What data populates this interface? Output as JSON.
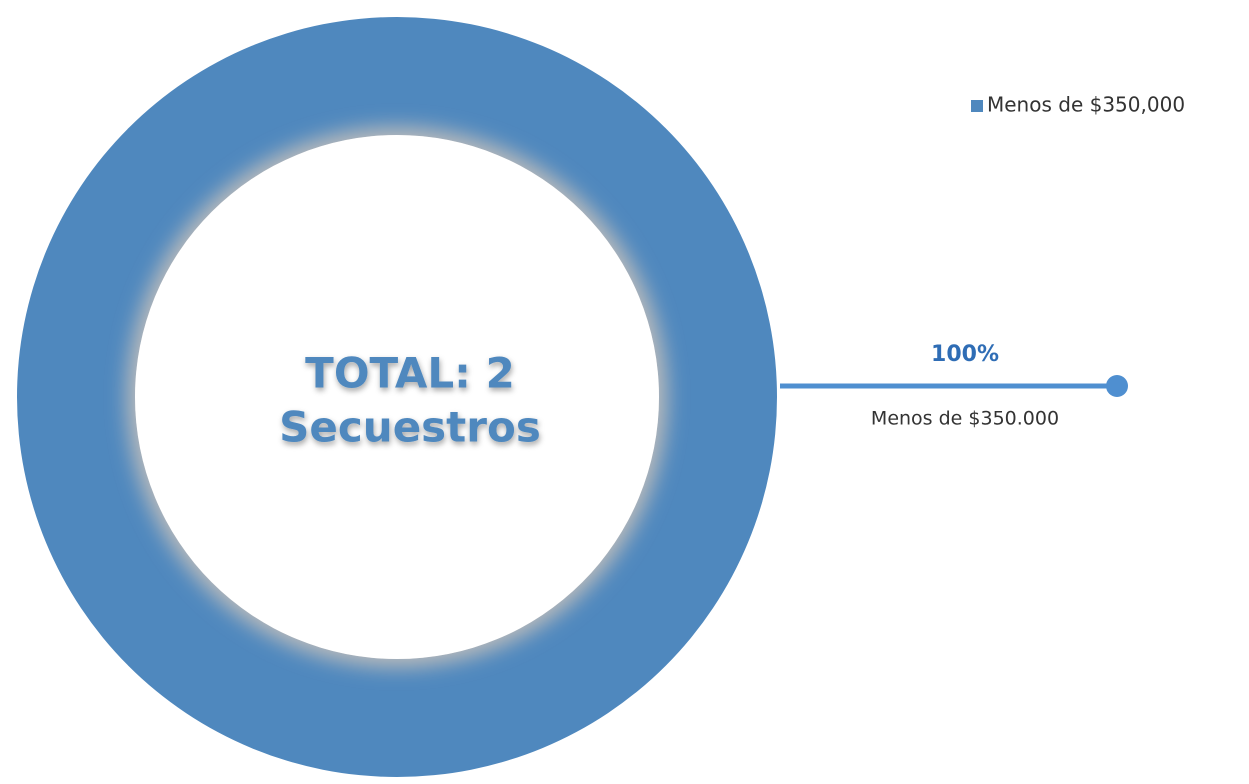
{
  "chart_data": {
    "type": "donut",
    "categories": [
      "Menos de $350.000"
    ],
    "values": [
      100
    ],
    "value_labels": [
      "100%"
    ],
    "legend_labels": [
      "Menos de $350,000"
    ],
    "colors": [
      "#4f88be"
    ],
    "center_text": [
      "TOTAL: 2",
      "Secuestros"
    ]
  }
}
